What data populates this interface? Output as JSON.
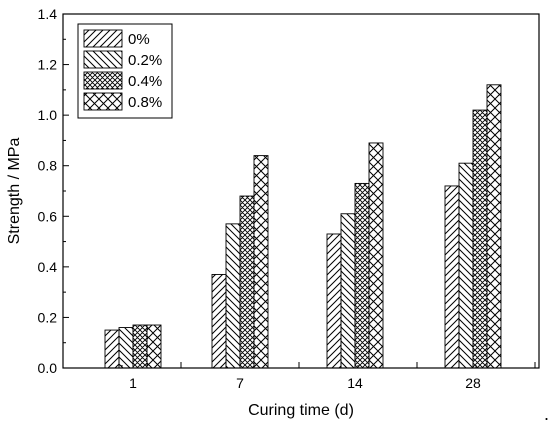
{
  "chart_data": {
    "type": "bar",
    "categories": [
      "1",
      "7",
      "14",
      "28"
    ],
    "series": [
      {
        "name": "0%",
        "values": [
          0.15,
          0.37,
          0.53,
          0.72
        ],
        "pattern": "diag-fwd"
      },
      {
        "name": "0.2%",
        "values": [
          0.16,
          0.57,
          0.61,
          0.81
        ],
        "pattern": "diag-back"
      },
      {
        "name": "0.4%",
        "values": [
          0.17,
          0.68,
          0.73,
          1.02
        ],
        "pattern": "crosshatch-dense"
      },
      {
        "name": "0.8%",
        "values": [
          0.17,
          0.84,
          0.89,
          1.12
        ],
        "pattern": "crosshatch"
      }
    ],
    "xlabel": "Curing time (d)",
    "ylabel": "Strength / MPa",
    "ylim": [
      0,
      1.4
    ],
    "yticks": [
      "0.0",
      "0.2",
      "0.4",
      "0.6",
      "0.8",
      "1.0",
      "1.2",
      "1.4"
    ],
    "grid": false,
    "legend_position": "top-left",
    "bar_fill": "#ffffff",
    "bar_stroke": "#000000"
  },
  "trailing_mark": "."
}
